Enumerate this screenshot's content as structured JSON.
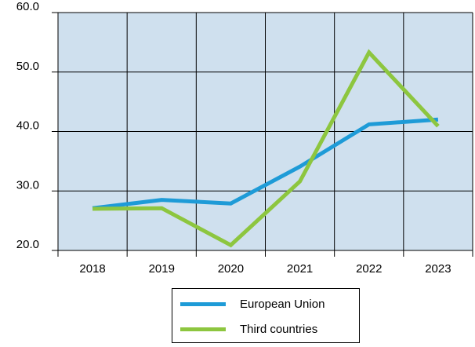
{
  "chart_data": {
    "type": "line",
    "categories": [
      "2018",
      "2019",
      "2020",
      "2021",
      "2022",
      "2023"
    ],
    "series": [
      {
        "name": "European Union",
        "color": "#1e9bd7",
        "values": [
          27.1,
          28.5,
          27.9,
          34.1,
          41.2,
          42.0
        ]
      },
      {
        "name": "Third countries",
        "color": "#8dc63f",
        "values": [
          27.0,
          27.1,
          20.9,
          31.6,
          53.3,
          40.9
        ]
      }
    ],
    "ylim": [
      20.0,
      60.0
    ],
    "yticks": [
      "20.0",
      "30.0",
      "40.0",
      "50.0",
      "60.0"
    ],
    "grid": true,
    "plot_background": "#cfe0ee",
    "legend": "bottom-center",
    "title": "",
    "xlabel": "",
    "ylabel": ""
  }
}
